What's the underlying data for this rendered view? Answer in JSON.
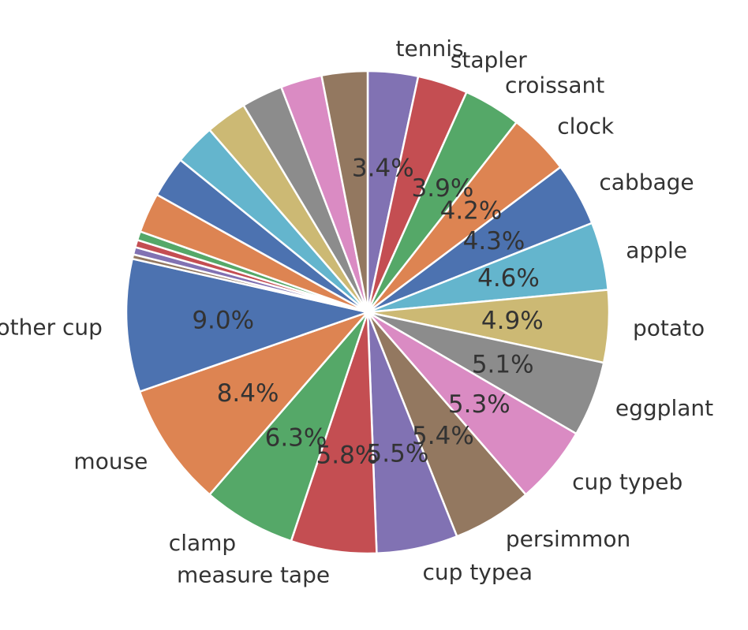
{
  "chart_data": {
    "type": "pie",
    "start_angle_deg": 90,
    "direction": "clockwise",
    "categories": [
      "tennis",
      "stapler",
      "croissant",
      "clock",
      "cabbage",
      "apple",
      "potato",
      "eggplant",
      "cup typeb",
      "persimmon",
      "cup typea",
      "measure tape",
      "clamp",
      "mouse",
      "other cup",
      "",
      "",
      "",
      "",
      "",
      "",
      "",
      "",
      "",
      "",
      ""
    ],
    "values": [
      3.4,
      3.4,
      3.9,
      4.2,
      4.3,
      4.6,
      4.9,
      5.1,
      5.3,
      5.4,
      5.5,
      5.8,
      6.3,
      8.4,
      9.0,
      0.3,
      0.5,
      0.5,
      0.6,
      2.7,
      2.8,
      2.8,
      2.8,
      2.8,
      2.8,
      3.1
    ],
    "value_labels": [
      "3.4%",
      "",
      "3.9%",
      "4.2%",
      "4.3%",
      "4.6%",
      "4.9%",
      "5.1%",
      "5.3%",
      "5.4%",
      "5.5%",
      "5.8%",
      "6.3%",
      "8.4%",
      "9.0%",
      "",
      "",
      "",
      "",
      "",
      "",
      "",
      "",
      "",
      "",
      ""
    ],
    "colors": [
      "#8172b3",
      "#c44e52",
      "#55a868",
      "#dd8452",
      "#4c72b0",
      "#64b5cd",
      "#ccb974",
      "#8c8c8c",
      "#da8bc3",
      "#937860",
      "#8172b3",
      "#c44e52",
      "#55a868",
      "#dd8452",
      "#4c72b0",
      "#937860",
      "#8172b3",
      "#c44e52",
      "#55a868",
      "#dd8452",
      "#4c72b0",
      "#64b5cd",
      "#ccb974",
      "#8c8c8c",
      "#da8bc3",
      "#937860"
    ]
  }
}
